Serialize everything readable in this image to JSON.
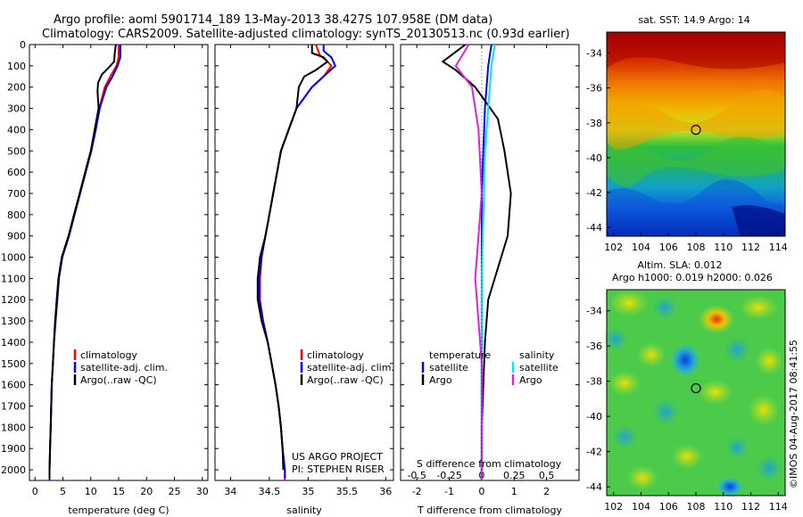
{
  "header": {
    "title_line1": "Argo profile: aoml 5901714_189 13-May-2013 38.427S 107.958E (DM data)",
    "title_line2": "Climatology: CARS2009. Satellite-adjusted climatology: synTS_20130513.nc (0.93d earlier)"
  },
  "colors": {
    "climatology": "#ff0000",
    "satellite": "#0000ff",
    "argo": "#000000",
    "salinity_satellite": "#00e5ff",
    "salinity_argo": "#e020e0"
  },
  "chart_data": [
    {
      "type": "line",
      "panel": "temperature",
      "xlabel": "temperature (deg C)",
      "xlim": [
        -1,
        31
      ],
      "xticks": [
        "0",
        "5",
        "10",
        "15",
        "20",
        "25",
        "30"
      ],
      "ylim": [
        0,
        2050
      ],
      "yreverse": true,
      "yticks": [
        "0",
        "100",
        "200",
        "300",
        "400",
        "500",
        "600",
        "700",
        "800",
        "900",
        "1000",
        "1100",
        "1200",
        "1300",
        "1400",
        "1500",
        "1600",
        "1700",
        "1800",
        "1900",
        "2000"
      ],
      "legend": [
        "climatology",
        "satellite-adj. clim.",
        "Argo(..raw -QC)"
      ],
      "series": [
        {
          "name": "climatology",
          "color": "#ff0000",
          "points": [
            [
              15,
              0
            ],
            [
              15,
              60
            ],
            [
              14.6,
              100
            ],
            [
              13.5,
              150
            ],
            [
              12.5,
              200
            ],
            [
              12,
              250
            ],
            [
              11.5,
              300
            ],
            [
              10.8,
              400
            ],
            [
              10,
              500
            ],
            [
              9,
              600
            ],
            [
              8,
              700
            ],
            [
              7,
              800
            ],
            [
              6,
              900
            ],
            [
              4.8,
              1000
            ],
            [
              4.2,
              1100
            ],
            [
              3.9,
              1200
            ],
            [
              3.6,
              1300
            ],
            [
              3.4,
              1400
            ],
            [
              3.2,
              1500
            ],
            [
              3,
              1600
            ],
            [
              2.9,
              1700
            ],
            [
              2.8,
              1800
            ],
            [
              2.7,
              1900
            ],
            [
              2.6,
              2000
            ],
            [
              2.6,
              2050
            ]
          ]
        },
        {
          "name": "satellite-adj. clim.",
          "color": "#0000ff",
          "points": [
            [
              15.3,
              0
            ],
            [
              15.3,
              60
            ],
            [
              14.8,
              100
            ],
            [
              13.9,
              150
            ],
            [
              12.8,
              200
            ],
            [
              12.2,
              250
            ],
            [
              11.6,
              300
            ],
            [
              10.9,
              400
            ],
            [
              10.1,
              500
            ],
            [
              9.1,
              600
            ],
            [
              8.1,
              700
            ],
            [
              7.1,
              800
            ],
            [
              6.1,
              900
            ],
            [
              4.9,
              1000
            ],
            [
              4.3,
              1100
            ],
            [
              4,
              1200
            ],
            [
              3.7,
              1300
            ],
            [
              3.4,
              1400
            ],
            [
              3.2,
              1500
            ],
            [
              3,
              1600
            ],
            [
              2.9,
              1700
            ],
            [
              2.8,
              1800
            ],
            [
              2.7,
              1900
            ],
            [
              2.6,
              2000
            ],
            [
              2.6,
              2050
            ]
          ]
        },
        {
          "name": "Argo(..raw -QC)",
          "color": "#000000",
          "points": [
            [
              14.5,
              0
            ],
            [
              14.3,
              40
            ],
            [
              14.2,
              80
            ],
            [
              13.5,
              100
            ],
            [
              12,
              140
            ],
            [
              11.3,
              180
            ],
            [
              11.2,
              220
            ],
            [
              11.4,
              300
            ],
            [
              10.7,
              400
            ],
            [
              10,
              500
            ],
            [
              9,
              600
            ],
            [
              8,
              700
            ],
            [
              7,
              800
            ],
            [
              6,
              900
            ],
            [
              4.8,
              1000
            ],
            [
              4.2,
              1100
            ],
            [
              3.9,
              1200
            ],
            [
              3.6,
              1300
            ],
            [
              3.4,
              1400
            ],
            [
              3.2,
              1500
            ],
            [
              3,
              1600
            ],
            [
              2.9,
              1700
            ],
            [
              2.8,
              1800
            ],
            [
              2.7,
              1900
            ],
            [
              2.6,
              2000
            ],
            [
              2.6,
              2040
            ]
          ]
        }
      ]
    },
    {
      "type": "line",
      "panel": "salinity",
      "xlabel": "salinity",
      "xlim": [
        33.8,
        36.1
      ],
      "xticks": [
        "34",
        "34.5",
        "35",
        "35.5",
        "36"
      ],
      "ylim": [
        0,
        2050
      ],
      "yreverse": true,
      "legend": [
        "climatology",
        "satellite-adj. clim.",
        "Argo(..raw -QC)"
      ],
      "annotation": [
        "US ARGO PROJECT",
        "PI: STEPHEN RISER"
      ],
      "series": [
        {
          "name": "climatology",
          "color": "#ff0000",
          "points": [
            [
              35.1,
              0
            ],
            [
              35.15,
              50
            ],
            [
              35.25,
              80
            ],
            [
              35.3,
              100
            ],
            [
              35.2,
              150
            ],
            [
              35.05,
              200
            ],
            [
              34.95,
              250
            ],
            [
              34.85,
              300
            ],
            [
              34.75,
              400
            ],
            [
              34.65,
              500
            ],
            [
              34.6,
              600
            ],
            [
              34.55,
              700
            ],
            [
              34.5,
              800
            ],
            [
              34.45,
              900
            ],
            [
              34.4,
              1000
            ],
            [
              34.38,
              1100
            ],
            [
              34.38,
              1200
            ],
            [
              34.42,
              1300
            ],
            [
              34.48,
              1400
            ],
            [
              34.53,
              1500
            ],
            [
              34.58,
              1600
            ],
            [
              34.62,
              1700
            ],
            [
              34.65,
              1800
            ],
            [
              34.67,
              1900
            ],
            [
              34.7,
              2000
            ],
            [
              34.7,
              2050
            ]
          ]
        },
        {
          "name": "satellite-adj. clim.",
          "color": "#0000ff",
          "points": [
            [
              35.2,
              0
            ],
            [
              35.2,
              30
            ],
            [
              35.3,
              60
            ],
            [
              35.35,
              100
            ],
            [
              35.2,
              150
            ],
            [
              35.05,
              200
            ],
            [
              34.95,
              250
            ],
            [
              34.85,
              300
            ],
            [
              34.75,
              400
            ],
            [
              34.65,
              500
            ],
            [
              34.6,
              600
            ],
            [
              34.55,
              700
            ],
            [
              34.5,
              800
            ],
            [
              34.45,
              900
            ],
            [
              34.4,
              1000
            ],
            [
              34.37,
              1100
            ],
            [
              34.37,
              1200
            ],
            [
              34.42,
              1300
            ],
            [
              34.48,
              1400
            ],
            [
              34.53,
              1500
            ],
            [
              34.58,
              1600
            ],
            [
              34.62,
              1700
            ],
            [
              34.65,
              1800
            ],
            [
              34.67,
              1900
            ],
            [
              34.7,
              2000
            ],
            [
              34.7,
              2040
            ]
          ]
        },
        {
          "name": "Argo(..raw -QC)",
          "color": "#000000",
          "points": [
            [
              35.05,
              0
            ],
            [
              35.05,
              40
            ],
            [
              35.2,
              60
            ],
            [
              35.25,
              80
            ],
            [
              35.1,
              120
            ],
            [
              34.95,
              150
            ],
            [
              34.88,
              200
            ],
            [
              34.85,
              300
            ],
            [
              34.75,
              400
            ],
            [
              34.65,
              500
            ],
            [
              34.6,
              600
            ],
            [
              34.55,
              700
            ],
            [
              34.5,
              800
            ],
            [
              34.45,
              900
            ],
            [
              34.38,
              1000
            ],
            [
              34.35,
              1100
            ],
            [
              34.35,
              1200
            ],
            [
              34.4,
              1300
            ],
            [
              34.48,
              1400
            ],
            [
              34.53,
              1500
            ],
            [
              34.58,
              1600
            ],
            [
              34.62,
              1700
            ],
            [
              34.65,
              1800
            ],
            [
              34.67,
              1900
            ],
            [
              34.68,
              2000
            ]
          ]
        }
      ]
    },
    {
      "type": "line",
      "panel": "difference",
      "xlabel": "T difference from climatology",
      "xlabel_top": "S difference from climatology",
      "xlim": [
        -2.5,
        3
      ],
      "xticks": [
        "-2",
        "-1",
        "0",
        "1",
        "2"
      ],
      "top_xlim": [
        -0.625,
        0.75
      ],
      "top_xticks": [
        "-0.5",
        "-0.25",
        "0",
        "0.25",
        "0.5"
      ],
      "ylim": [
        0,
        2050
      ],
      "yreverse": true,
      "legend_groups": [
        {
          "header": "temperature",
          "entries": [
            "satellite",
            "Argo"
          ]
        },
        {
          "header": "salinity",
          "entries": [
            "satellite",
            "Argo"
          ]
        }
      ],
      "series": [
        {
          "name": "temperature satellite",
          "color": "#0000ff",
          "points": [
            [
              0.3,
              0
            ],
            [
              0.2,
              100
            ],
            [
              0.1,
              300
            ],
            [
              0.05,
              500
            ],
            [
              0,
              700
            ],
            [
              0,
              1000
            ],
            [
              0,
              1400
            ],
            [
              0,
              2050
            ]
          ]
        },
        {
          "name": "temperature Argo",
          "color": "#000000",
          "points": [
            [
              -0.5,
              0
            ],
            [
              -1.2,
              80
            ],
            [
              -0.8,
              120
            ],
            [
              -0.2,
              200
            ],
            [
              0.5,
              350
            ],
            [
              0.7,
              500
            ],
            [
              0.9,
              700
            ],
            [
              0.8,
              900
            ],
            [
              0.5,
              1050
            ],
            [
              0.2,
              1200
            ],
            [
              0.1,
              1400
            ],
            [
              0.05,
              1600
            ],
            [
              0,
              1800
            ],
            [
              0,
              2050
            ]
          ]
        },
        {
          "name": "salinity satellite",
          "color": "#00e5ff",
          "points": [
            [
              0.4,
              0
            ],
            [
              0.3,
              100
            ],
            [
              0.2,
              300
            ],
            [
              0.1,
              500
            ],
            [
              0.05,
              800
            ],
            [
              0,
              1100
            ],
            [
              0,
              1500
            ],
            [
              0,
              2050
            ]
          ]
        },
        {
          "name": "salinity Argo",
          "color": "#e020e0",
          "points": [
            [
              -0.4,
              0
            ],
            [
              -0.8,
              100
            ],
            [
              -0.3,
              200
            ],
            [
              -0.1,
              400
            ],
            [
              0,
              700
            ],
            [
              -0.1,
              900
            ],
            [
              -0.2,
              1100
            ],
            [
              -0.1,
              1300
            ],
            [
              0,
              1500
            ],
            [
              0,
              1700
            ],
            [
              0,
              2050
            ]
          ]
        }
      ]
    },
    {
      "type": "heatmap",
      "panel": "sst-map",
      "title": "sat. SST: 14.9 Argo: 14",
      "xlim": [
        101.5,
        114.5
      ],
      "ylim": [
        -44.5,
        -32.8
      ],
      "xticks": [
        "102",
        "104",
        "106",
        "108",
        "110",
        "112",
        "114"
      ],
      "yticks": [
        "-34",
        "-36",
        "-38",
        "-40",
        "-42",
        "-44"
      ],
      "marker": [
        108,
        -38.4
      ]
    },
    {
      "type": "heatmap",
      "panel": "sla-map",
      "title_line1": "Altim. SLA: 0.012",
      "title_line2": "Argo h1000: 0.019 h2000: 0.026",
      "xlim": [
        101.5,
        114.5
      ],
      "ylim": [
        -44.5,
        -32.8
      ],
      "xticks": [
        "102",
        "104",
        "106",
        "108",
        "110",
        "112",
        "114"
      ],
      "yticks": [
        "-34",
        "-36",
        "-38",
        "-40",
        "-42",
        "-44"
      ],
      "marker": [
        108,
        -38.4
      ]
    }
  ],
  "footer": {
    "credit": "©IMOS 04-Aug-2017 08:41:55"
  }
}
